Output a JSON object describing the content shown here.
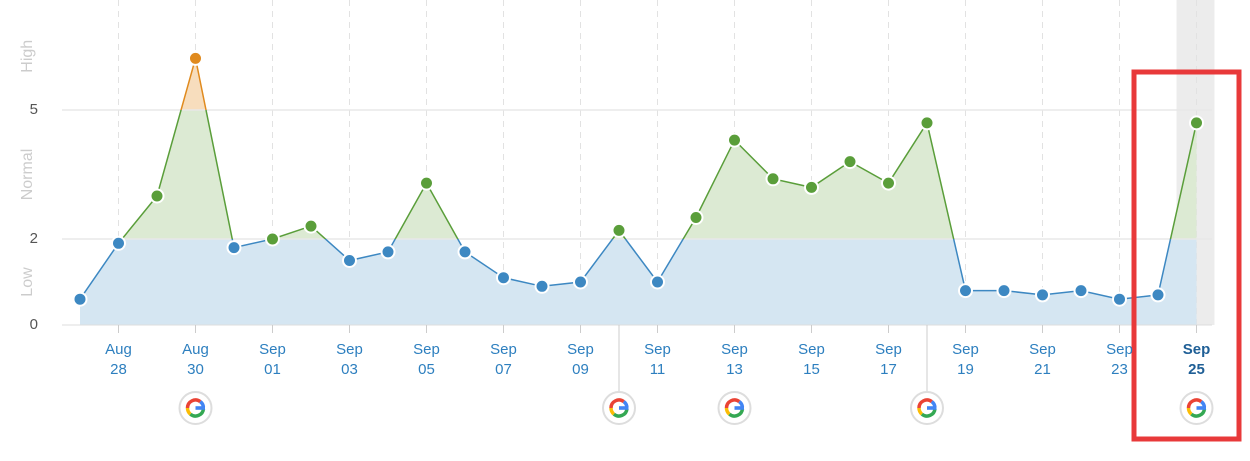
{
  "chart_data": {
    "type": "line",
    "categories": [
      null,
      "Aug 28",
      null,
      "Aug 30",
      null,
      "Sep 01",
      null,
      "Sep 03",
      null,
      "Sep 05",
      null,
      "Sep 07",
      null,
      "Sep 09",
      null,
      "Sep 11",
      null,
      "Sep 13",
      null,
      "Sep 15",
      null,
      "Sep 17",
      null,
      "Sep 19",
      null,
      "Sep 21",
      null,
      "Sep 23",
      null,
      "Sep 25"
    ],
    "values": [
      0.6,
      1.9,
      3.0,
      6.2,
      1.8,
      2.0,
      2.3,
      1.5,
      1.7,
      3.3,
      1.7,
      1.1,
      0.9,
      1.0,
      2.2,
      1.0,
      2.5,
      4.3,
      3.4,
      3.2,
      3.8,
      3.3,
      4.7,
      0.8,
      0.8,
      0.7,
      0.8,
      0.6,
      0.7,
      4.7
    ],
    "ylim": [
      0,
      7.5
    ],
    "yticks": [
      0,
      2,
      5
    ],
    "grid": true,
    "bands": [
      {
        "label": "Low",
        "color": "#3d88c2",
        "fill": "#d5e6f2"
      },
      {
        "label": "Normal",
        "color": "#5a9e3a",
        "fill": "#dcead3"
      },
      {
        "label": "High",
        "color": "#e08a1e",
        "fill": "#f7ddbd"
      }
    ],
    "google_update_indices": [
      3,
      14,
      17,
      22,
      29
    ],
    "highlight_index": 29
  }
}
